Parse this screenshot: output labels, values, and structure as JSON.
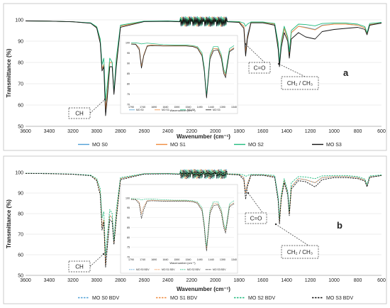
{
  "chart_data": [
    {
      "type": "line",
      "panel_label": "a",
      "xlabel": "Wavenumber (cm⁻¹)",
      "ylabel": "Transmittance (%)",
      "xlim": [
        3600,
        600
      ],
      "ylim": [
        50,
        100
      ],
      "x_ticks": [
        3600,
        3400,
        3200,
        3000,
        2800,
        2600,
        2400,
        2200,
        2000,
        1800,
        1600,
        1400,
        1200,
        1000,
        800,
        600
      ],
      "y_ticks": [
        50,
        60,
        70,
        80,
        90,
        100
      ],
      "grid": true,
      "legend_position": "bottom",
      "annotations": [
        "CH",
        "C=O",
        "CH₂ / CH₃"
      ],
      "x": [
        3600,
        3400,
        3200,
        3050,
        3000,
        2970,
        2955,
        2940,
        2925,
        2910,
        2890,
        2870,
        2855,
        2835,
        2800,
        2600,
        2400,
        2300,
        2200,
        2100,
        2000,
        1900,
        1800,
        1760,
        1745,
        1730,
        1700,
        1600,
        1500,
        1470,
        1460,
        1445,
        1420,
        1390,
        1377,
        1360,
        1300,
        1240,
        1160,
        1100,
        1000,
        900,
        800,
        740,
        722,
        700,
        600
      ],
      "series": [
        {
          "name": "MO S0",
          "color": "#4e9fd6",
          "values": [
            99.5,
            99.4,
            99.1,
            98.5,
            96.5,
            90,
            77,
            79,
            58,
            66,
            80,
            80,
            66,
            80,
            97,
            99.3,
            99.4,
            99.2,
            99.3,
            99.2,
            99.2,
            99.2,
            99,
            97,
            86,
            93,
            98.8,
            98.8,
            98,
            88,
            79,
            89,
            96,
            91,
            84,
            94,
            97,
            96.5,
            95.5,
            97.5,
            98,
            98,
            97.5,
            96.2,
            93.5,
            97.8,
            98.5
          ]
        },
        {
          "name": "MO S1",
          "color": "#ef8a3c",
          "values": [
            99.5,
            99.4,
            99.1,
            98.5,
            96.5,
            90,
            77,
            79,
            58,
            66,
            80,
            80,
            66,
            80,
            97,
            99.3,
            99.4,
            99.2,
            99.3,
            99.2,
            99.2,
            99.2,
            99,
            97,
            85,
            92,
            98.8,
            98.8,
            98,
            88,
            79,
            89,
            96,
            91,
            84,
            94,
            97,
            96.3,
            95.3,
            97.3,
            98,
            98,
            97.5,
            96.2,
            93.5,
            97.8,
            98.5
          ]
        },
        {
          "name": "MO S2",
          "color": "#1fba7d",
          "values": [
            99.5,
            99.4,
            99.1,
            98.6,
            96.8,
            91,
            79,
            82,
            62,
            70,
            82,
            80,
            66,
            82,
            97.5,
            99.4,
            99.5,
            99.3,
            99.4,
            99.3,
            99.3,
            99.3,
            99.2,
            98.5,
            97,
            98,
            99,
            99,
            98.3,
            89,
            80,
            90,
            97,
            92,
            85,
            95,
            98,
            97.8,
            97.2,
            98.3,
            98.5,
            98.5,
            98,
            96.8,
            94,
            98.3,
            98.8
          ]
        },
        {
          "name": "MO S3",
          "color": "#111111",
          "values": [
            99.5,
            99.4,
            99.1,
            98.4,
            96.2,
            89,
            76,
            78,
            55,
            64,
            78,
            78,
            65,
            78,
            96.5,
            99.2,
            99.3,
            99.1,
            99.2,
            99.1,
            99.1,
            99.1,
            98.8,
            96,
            83,
            91,
            98.6,
            98.6,
            97.5,
            86,
            78,
            87,
            94,
            90,
            82,
            91,
            94,
            92,
            91,
            94.5,
            95.5,
            96,
            96.5,
            95.5,
            93,
            97.5,
            98.5
          ]
        }
      ],
      "inset": {
        "xlabel": "Wavenumber (cm⁻¹)",
        "xlim": [
          1790,
          1340
        ],
        "ylim": [
          70,
          101
        ],
        "x_ticks": [
          1790,
          1740,
          1690,
          1640,
          1590,
          1540,
          1490,
          1440,
          1390,
          1340
        ],
        "y_ticks": [
          70,
          75,
          80,
          85,
          90,
          95,
          100
        ],
        "x": [
          1790,
          1770,
          1755,
          1745,
          1735,
          1720,
          1700,
          1650,
          1600,
          1550,
          1520,
          1500,
          1480,
          1470,
          1465,
          1460,
          1455,
          1445,
          1430,
          1410,
          1395,
          1385,
          1377,
          1370,
          1360,
          1340
        ],
        "series": [
          {
            "name": "MO S0",
            "values": [
              99.3,
              99.2,
              97.5,
              89,
              94,
              98.5,
              98.8,
              98.5,
              98.5,
              98.5,
              98.2,
              97.5,
              94,
              87,
              80,
              73.5,
              80,
              93,
              97,
              97,
              93,
              86,
              84,
              89,
              96,
              97.5
            ]
          },
          {
            "name": "MO S1",
            "values": [
              99.3,
              99.2,
              97.3,
              88.5,
              94,
              98.5,
              98.8,
              98.5,
              98.5,
              98.5,
              98.2,
              97.5,
              94,
              87,
              80,
              73.5,
              80,
              93,
              97,
              97,
              93,
              86,
              84,
              89,
              96,
              97.5
            ]
          },
          {
            "name": "MO S2",
            "values": [
              99.8,
              99.8,
              99.6,
              99.3,
              99.5,
              99.7,
              99.5,
              99,
              98.8,
              98.8,
              98.5,
              98,
              95,
              88,
              81,
              74.5,
              81,
              94,
              98,
              98,
              94,
              87,
              85,
              90,
              97,
              98.5
            ]
          },
          {
            "name": "MO S3",
            "values": [
              99.2,
              99.1,
              96.5,
              87.5,
              93.5,
              98.2,
              98.5,
              98.3,
              98.3,
              98.3,
              98,
              97.2,
              93.5,
              86,
              79,
              73,
              79,
              92,
              96,
              96.5,
              92,
              85,
              83,
              88,
              95.5,
              97
            ]
          }
        ]
      }
    },
    {
      "type": "line",
      "panel_label": "b",
      "xlabel": "Wavenumber (cm⁻¹)",
      "ylabel": "Transmittance (%)",
      "xlim": [
        3600,
        600
      ],
      "ylim": [
        50,
        100
      ],
      "x_ticks": [
        3600,
        3400,
        3200,
        3000,
        2800,
        2600,
        2400,
        2200,
        2000,
        1800,
        1600,
        1400,
        1200,
        1000,
        800,
        600
      ],
      "y_ticks": [
        50,
        60,
        70,
        80,
        90,
        100
      ],
      "grid": true,
      "legend_position": "bottom",
      "annotations": [
        "CH",
        "C=O",
        "CH₂ / CH₃"
      ],
      "x": [
        3600,
        3400,
        3200,
        3050,
        3000,
        2970,
        2955,
        2940,
        2925,
        2910,
        2890,
        2870,
        2855,
        2835,
        2800,
        2600,
        2400,
        2300,
        2200,
        2100,
        2000,
        1900,
        1800,
        1760,
        1745,
        1730,
        1700,
        1600,
        1500,
        1470,
        1460,
        1445,
        1420,
        1390,
        1377,
        1360,
        1300,
        1240,
        1160,
        1100,
        1000,
        900,
        800,
        740,
        722,
        700,
        600
      ],
      "series": [
        {
          "name": "MO S0 BDV",
          "color": "#4e9fd6",
          "values": [
            99.5,
            99.4,
            99.1,
            98.5,
            96.5,
            90,
            74,
            77,
            56,
            66,
            79,
            78,
            66,
            79,
            97,
            99.3,
            99.4,
            99.2,
            99.3,
            99.2,
            99.2,
            99.2,
            99,
            97.5,
            90,
            94.5,
            98.8,
            98.8,
            98,
            87,
            76,
            88,
            96,
            90,
            80,
            93,
            97,
            96.5,
            95,
            97.5,
            98,
            98,
            97.5,
            96.2,
            93.5,
            97.8,
            98.5
          ]
        },
        {
          "name": "MO S1 BDV",
          "color": "#ef8a3c",
          "values": [
            99.5,
            99.4,
            99.1,
            98.5,
            96.5,
            90,
            74,
            77,
            55,
            66,
            79,
            78,
            66,
            79,
            97,
            99.3,
            99.4,
            99.2,
            99.3,
            99.2,
            99.2,
            99.2,
            99,
            97.5,
            90,
            94.5,
            98.8,
            98.8,
            98,
            87,
            76,
            88,
            96,
            90,
            80,
            93,
            97,
            96.5,
            95,
            97.5,
            98,
            98,
            97.5,
            96.2,
            93.5,
            97.8,
            98.5
          ]
        },
        {
          "name": "MO S2 BDV",
          "color": "#1fba7d",
          "values": [
            99.6,
            99.5,
            99.2,
            98.7,
            97,
            92,
            78,
            81,
            60,
            70,
            82,
            80,
            67,
            82,
            97.5,
            99.4,
            99.5,
            99.3,
            99.4,
            99.3,
            99.3,
            99.3,
            99.2,
            98.8,
            98,
            98.5,
            99,
            99,
            98.5,
            88,
            77,
            89,
            97,
            91,
            81,
            95,
            98,
            97.8,
            97,
            98.3,
            98.5,
            98.5,
            98,
            96.8,
            94,
            98.3,
            98.8
          ]
        },
        {
          "name": "MO S3 BDV",
          "color": "#111111",
          "values": [
            99.5,
            99.4,
            99.1,
            98.4,
            96,
            89,
            72,
            76,
            54,
            64,
            77,
            76,
            65,
            77,
            96.5,
            99.2,
            99.3,
            99.1,
            99.2,
            99.1,
            99.1,
            99.1,
            98.8,
            96.5,
            87,
            93,
            98.6,
            98.6,
            97.6,
            86,
            75,
            87,
            95,
            89,
            79,
            92,
            96,
            95.5,
            93,
            96.5,
            97.5,
            97.5,
            97,
            95.8,
            93,
            97.6,
            98.5
          ]
        }
      ],
      "inset": {
        "xlabel": "Wavenumber (cm⁻¹)",
        "xlim": [
          1790,
          1340
        ],
        "ylim": [
          70,
          101
        ],
        "x_ticks": [
          1790,
          1740,
          1690,
          1640,
          1590,
          1540,
          1490,
          1440,
          1390,
          1340
        ],
        "y_ticks": [
          70,
          75,
          80,
          85,
          90,
          95,
          100
        ],
        "x": [
          1790,
          1770,
          1755,
          1745,
          1735,
          1720,
          1700,
          1650,
          1600,
          1550,
          1520,
          1500,
          1480,
          1470,
          1465,
          1460,
          1455,
          1445,
          1430,
          1410,
          1395,
          1385,
          1377,
          1370,
          1360,
          1340
        ],
        "series": [
          {
            "name": "MO S0 BDV",
            "values": [
              99.3,
              99.2,
              97.8,
              92,
              95.5,
              98.6,
              98.8,
              98.5,
              98.5,
              98.5,
              98.2,
              97.5,
              94,
              86,
              79,
              74.5,
              80,
              93,
              97,
              97,
              93,
              86,
              83,
              88,
              96,
              97.5
            ]
          },
          {
            "name": "MO S1 BDV",
            "values": [
              99.3,
              99.2,
              97.8,
              92,
              95.5,
              98.6,
              98.8,
              98.5,
              98.5,
              98.5,
              98.2,
              97.5,
              94,
              86,
              79,
              74,
              80,
              93,
              97,
              97,
              93,
              86,
              83,
              88,
              96,
              97.5
            ]
          },
          {
            "name": "MO S2 BDV",
            "values": [
              99.6,
              99.5,
              99.3,
              99,
              99.2,
              99.4,
              99.4,
              99,
              98.8,
              98.8,
              98.5,
              98,
              95,
              87,
              80,
              75.5,
              81,
              94,
              98,
              98,
              94,
              87,
              84,
              89,
              97,
              98.5
            ]
          },
          {
            "name": "MO S3 BDV",
            "values": [
              99.2,
              99.1,
              97,
              89.5,
              94,
              98.3,
              98.5,
              98.3,
              98.3,
              98.3,
              98,
              97.2,
              93.5,
              85,
              78,
              73,
              79,
              92,
              96,
              96.5,
              92,
              85,
              82,
              87,
              95.5,
              97
            ]
          }
        ]
      }
    }
  ]
}
